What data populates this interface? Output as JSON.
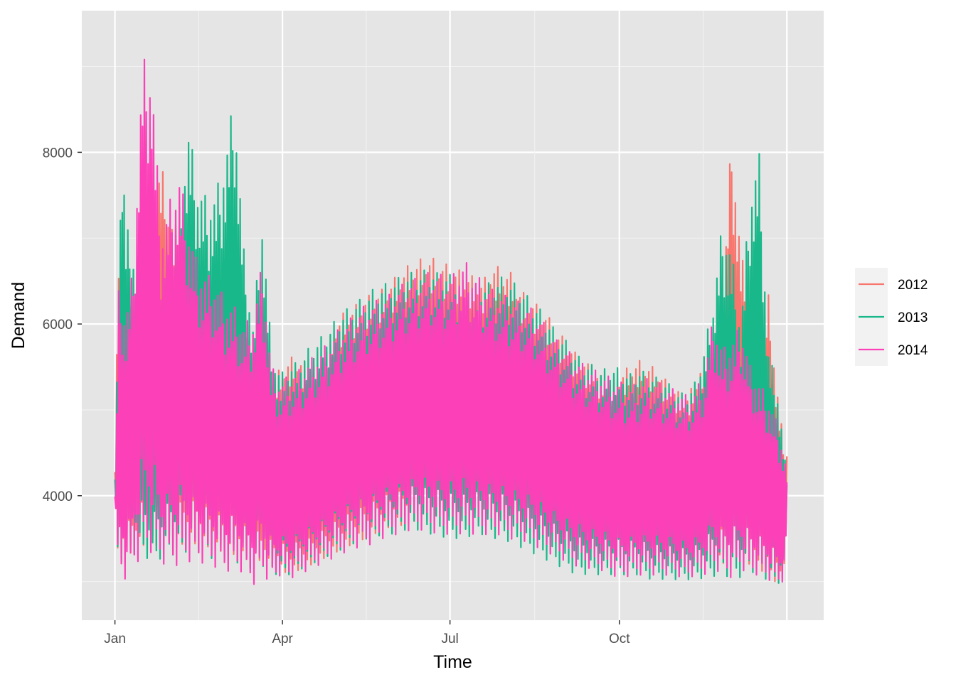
{
  "chart_data": {
    "type": "line",
    "xlabel": "Time",
    "ylabel": "Demand",
    "x_ticks": [
      {
        "label": "Jan",
        "day": 0
      },
      {
        "label": "Apr",
        "day": 91
      },
      {
        "label": "Jul",
        "day": 182
      },
      {
        "label": "Oct",
        "day": 274
      }
    ],
    "y_ticks": [
      4000,
      6000,
      8000
    ],
    "xlim": [
      -18,
      385
    ],
    "ylim": [
      2550,
      9650
    ],
    "grid": true,
    "legend_position": "right",
    "series": [
      {
        "name": "2012",
        "color": "#F8766D",
        "x": [
          0,
          2,
          4,
          6,
          10,
          15,
          20,
          25,
          30,
          35,
          40,
          45,
          50,
          55,
          60,
          65,
          70,
          75,
          80,
          85,
          90,
          95,
          100,
          105,
          110,
          115,
          120,
          125,
          130,
          135,
          140,
          145,
          150,
          155,
          160,
          165,
          170,
          175,
          180,
          185,
          190,
          195,
          200,
          205,
          210,
          215,
          220,
          225,
          230,
          235,
          240,
          245,
          250,
          255,
          260,
          265,
          270,
          275,
          280,
          285,
          290,
          295,
          300,
          305,
          310,
          315,
          320,
          325,
          330,
          335,
          340,
          345,
          350,
          355,
          360,
          363,
          365
        ],
        "upper": [
          4400,
          7350,
          6900,
          6200,
          6500,
          7300,
          7500,
          8050,
          7400,
          7200,
          7000,
          7350,
          6800,
          6600,
          6400,
          6800,
          6300,
          5800,
          5700,
          5500,
          5550,
          5700,
          5700,
          5600,
          5750,
          5850,
          6100,
          6250,
          6300,
          6400,
          6450,
          6500,
          6600,
          6700,
          6800,
          6850,
          6900,
          6850,
          6800,
          6750,
          6700,
          6650,
          6600,
          6800,
          6750,
          6700,
          6500,
          6400,
          6300,
          6200,
          6000,
          5900,
          5750,
          5650,
          5550,
          5450,
          5400,
          5500,
          5600,
          5650,
          5600,
          5550,
          5400,
          5300,
          5200,
          5400,
          5700,
          6000,
          6300,
          8450,
          7000,
          6300,
          6100,
          6450,
          5300,
          4700,
          4550
        ],
        "lower": [
          3850,
          3100,
          3150,
          3200,
          3250,
          3300,
          3250,
          3300,
          3350,
          3300,
          3350,
          3300,
          3300,
          3250,
          3250,
          3200,
          3150,
          3200,
          3150,
          3100,
          3050,
          3000,
          3050,
          3100,
          3150,
          3200,
          3250,
          3300,
          3350,
          3400,
          3450,
          3500,
          3550,
          3550,
          3600,
          3600,
          3600,
          3550,
          3550,
          3550,
          3550,
          3600,
          3600,
          3600,
          3550,
          3550,
          3500,
          3500,
          3450,
          3400,
          3350,
          3350,
          3300,
          3250,
          3250,
          3200,
          3200,
          3200,
          3250,
          3250,
          3200,
          3200,
          3150,
          3150,
          3100,
          3100,
          3150,
          3150,
          3100,
          3150,
          3100,
          3100,
          3050,
          2950,
          2900,
          2950,
          3600
        ]
      },
      {
        "name": "2013",
        "color": "#19B88A",
        "x": [
          0,
          2,
          4,
          6,
          10,
          15,
          20,
          25,
          30,
          35,
          40,
          45,
          50,
          55,
          60,
          65,
          70,
          75,
          80,
          85,
          90,
          95,
          100,
          105,
          110,
          115,
          120,
          125,
          130,
          135,
          140,
          145,
          150,
          155,
          160,
          165,
          170,
          175,
          180,
          185,
          190,
          195,
          200,
          205,
          210,
          215,
          220,
          225,
          230,
          235,
          240,
          245,
          250,
          255,
          260,
          265,
          270,
          275,
          280,
          285,
          290,
          295,
          300,
          305,
          310,
          315,
          320,
          325,
          330,
          335,
          340,
          345,
          350,
          355,
          360,
          363,
          365
        ],
        "upper": [
          4200,
          7000,
          8300,
          7300,
          7000,
          7100,
          6700,
          6900,
          7000,
          7500,
          8450,
          7800,
          7600,
          7700,
          8150,
          8900,
          7000,
          6100,
          7400,
          5800,
          5500,
          5600,
          5650,
          5800,
          5900,
          6000,
          6150,
          6250,
          6350,
          6400,
          6500,
          6550,
          6600,
          6650,
          6700,
          6700,
          6750,
          6700,
          6700,
          6650,
          6600,
          6550,
          6550,
          6600,
          6650,
          6600,
          6550,
          6400,
          6300,
          6150,
          6000,
          5900,
          5750,
          5650,
          5600,
          5550,
          5600,
          5550,
          5500,
          5550,
          5500,
          5450,
          5400,
          5300,
          5250,
          5400,
          5800,
          6400,
          7350,
          7000,
          6100,
          7750,
          8150,
          5800,
          5300,
          4700,
          4200
        ],
        "lower": [
          3850,
          3000,
          3100,
          3150,
          3200,
          3200,
          3100,
          3150,
          3200,
          3150,
          3200,
          3200,
          3150,
          3100,
          3100,
          3050,
          3050,
          3050,
          3050,
          3000,
          3000,
          3000,
          3050,
          3100,
          3150,
          3200,
          3250,
          3300,
          3350,
          3400,
          3400,
          3450,
          3450,
          3500,
          3500,
          3500,
          3450,
          3450,
          3400,
          3400,
          3400,
          3450,
          3450,
          3400,
          3400,
          3350,
          3300,
          3250,
          3200,
          3150,
          3100,
          3050,
          3000,
          3000,
          3000,
          3000,
          3000,
          3000,
          3000,
          3000,
          2950,
          2950,
          2950,
          2950,
          2950,
          2950,
          2950,
          2950,
          2950,
          2900,
          2950,
          2950,
          2950,
          2900,
          2900,
          2950,
          3650
        ]
      },
      {
        "name": "2014",
        "color": "#FC40B8",
        "x": [
          0,
          2,
          4,
          6,
          10,
          15,
          20,
          25,
          30,
          35,
          40,
          45,
          50,
          55,
          60,
          65,
          70,
          75,
          80,
          85,
          90,
          95,
          100,
          105,
          110,
          115,
          120,
          125,
          130,
          135,
          140,
          145,
          150,
          155,
          160,
          165,
          170,
          175,
          180,
          185,
          190,
          195,
          200,
          205,
          210,
          215,
          220,
          225,
          230,
          235,
          240,
          245,
          250,
          255,
          260,
          265,
          270,
          275,
          280,
          285,
          290,
          295,
          300,
          305,
          310,
          315,
          320,
          325,
          330,
          335,
          340,
          345,
          350,
          355,
          360,
          363,
          365
        ],
        "upper": [
          4000,
          6500,
          6400,
          6200,
          6800,
          9300,
          9200,
          7200,
          7600,
          7900,
          7300,
          6800,
          6700,
          6600,
          6400,
          6300,
          6100,
          6200,
          6850,
          5600,
          5400,
          5500,
          5550,
          5650,
          5750,
          5850,
          6000,
          6100,
          6200,
          6300,
          6350,
          6400,
          6450,
          6550,
          6600,
          6650,
          6700,
          6700,
          6650,
          6700,
          6850,
          6700,
          6600,
          6500,
          6450,
          6400,
          6350,
          6300,
          6200,
          6050,
          5900,
          5800,
          5700,
          5600,
          5550,
          5500,
          5450,
          5400,
          5350,
          5400,
          5450,
          5400,
          5350,
          5300,
          5250,
          5300,
          5500,
          6200,
          5800,
          5900,
          6100,
          5600,
          5400,
          5200,
          4900,
          4600,
          4300
        ],
        "lower": [
          3850,
          2950,
          3000,
          2900,
          3050,
          3100,
          3150,
          3100,
          3000,
          3050,
          3100,
          3100,
          3100,
          3050,
          3000,
          3050,
          3000,
          2850,
          2950,
          2900,
          3000,
          2950,
          3000,
          3050,
          3100,
          3150,
          3200,
          3250,
          3300,
          3300,
          3350,
          3400,
          3450,
          3450,
          3500,
          3500,
          3500,
          3450,
          3450,
          3450,
          3450,
          3450,
          3450,
          3450,
          3450,
          3400,
          3400,
          3350,
          3300,
          3250,
          3200,
          3150,
          3100,
          3100,
          3050,
          3050,
          3000,
          2950,
          3000,
          3000,
          3000,
          3000,
          3000,
          3000,
          2950,
          3000,
          3000,
          3050,
          3000,
          2950,
          3050,
          3000,
          3000,
          2950,
          2900,
          2950,
          3400
        ]
      }
    ]
  }
}
